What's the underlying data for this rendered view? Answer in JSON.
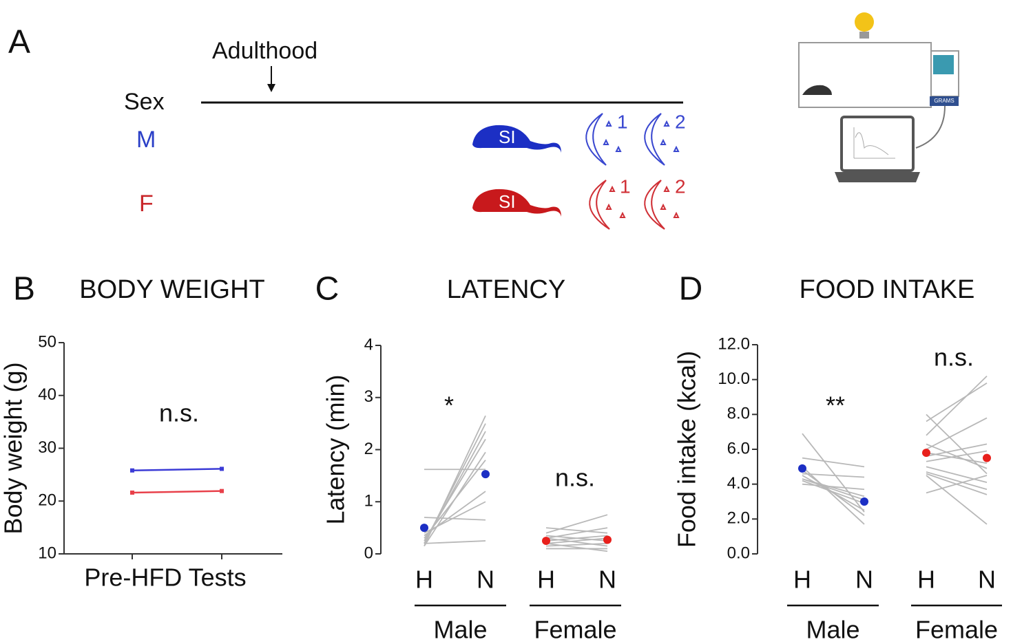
{
  "diagram": {
    "label": "A",
    "timeline_label": "Adulthood",
    "sex_label": "Sex",
    "sexes": [
      "M",
      "F"
    ],
    "procedure": "SI",
    "nights": [
      "1",
      "2"
    ],
    "device": "GRAMS"
  },
  "chart_data": [
    {
      "type": "line",
      "panel": "B",
      "title": "BODY WEIGHT",
      "y_label": "Body weight (g)",
      "x_label": "Pre-HFD Tests",
      "categories": [
        null,
        null
      ],
      "series": [
        {
          "color": "#3b3bd6",
          "values": [
            25.8,
            26.1
          ]
        },
        {
          "color": "#e8404a",
          "values": [
            21.6,
            21.9
          ]
        }
      ],
      "ylim": [
        10,
        50
      ],
      "yticks": [
        10,
        20,
        30,
        40,
        50
      ],
      "annotations": [
        "n.s."
      ]
    },
    {
      "type": "paired",
      "panel": "C",
      "title": "LATENCY",
      "y_label": "Latency (min)",
      "categories": [
        "H",
        "N",
        "H",
        "N"
      ],
      "groups": [
        "Male",
        "Female"
      ],
      "means": [
        0.5,
        1.53,
        0.25,
        0.27
      ],
      "mean_colors": [
        "#1c2fc4",
        "#1c2fc4",
        "#e8201c",
        "#e8201c"
      ],
      "individuals": [
        [
          [
            1.62,
            1.62
          ],
          [
            0.15,
            2.65
          ],
          [
            0.2,
            2.5
          ],
          [
            0.2,
            2.35
          ],
          [
            0.25,
            2.2
          ],
          [
            0.15,
            1.95
          ],
          [
            0.3,
            1.8
          ],
          [
            0.7,
            0.65
          ],
          [
            0.35,
            1.2
          ],
          [
            0.2,
            0.25
          ],
          [
            0.4,
            1.0
          ]
        ],
        [
          [
            0.5,
            0.4
          ],
          [
            0.4,
            0.75
          ],
          [
            0.3,
            0.5
          ],
          [
            0.2,
            0.3
          ],
          [
            0.15,
            0.2
          ],
          [
            0.1,
            0.1
          ],
          [
            0.3,
            0.15
          ],
          [
            0.25,
            0.35
          ],
          [
            0.2,
            0.05
          ],
          [
            0.35,
            0.25
          ]
        ]
      ],
      "ylim": [
        0,
        4
      ],
      "yticks": [
        0,
        1,
        2,
        3,
        4
      ],
      "annotations": [
        "*",
        "n.s."
      ]
    },
    {
      "type": "paired",
      "panel": "D",
      "title": "FOOD INTAKE",
      "y_label": "Food intake (kcal)",
      "categories": [
        "H",
        "N",
        "H",
        "N"
      ],
      "groups": [
        "Male",
        "Female"
      ],
      "means": [
        4.9,
        3.0,
        5.8,
        5.5
      ],
      "mean_colors": [
        "#1c2fc4",
        "#1c2fc4",
        "#e8201c",
        "#e8201c"
      ],
      "individuals": [
        [
          [
            6.9,
            2.4
          ],
          [
            5.5,
            5.0
          ],
          [
            5.0,
            1.7
          ],
          [
            4.6,
            4.4
          ],
          [
            4.5,
            2.5
          ],
          [
            4.3,
            3.1
          ],
          [
            4.0,
            3.7
          ],
          [
            4.2,
            2.9
          ],
          [
            4.8,
            2.2
          ],
          [
            4.3,
            3.3
          ]
        ],
        [
          [
            8.0,
            4.6
          ],
          [
            7.6,
            9.8
          ],
          [
            6.8,
            10.2
          ],
          [
            6.3,
            4.9
          ],
          [
            6.0,
            7.8
          ],
          [
            5.6,
            6.3
          ],
          [
            5.3,
            5.9
          ],
          [
            5.0,
            4.1
          ],
          [
            4.7,
            3.7
          ],
          [
            4.5,
            1.7
          ],
          [
            3.5,
            4.5
          ],
          [
            5.8,
            5.2
          ],
          [
            4.6,
            3.4
          ]
        ]
      ],
      "ylim": [
        0,
        12
      ],
      "yticks": [
        {
          "value": 0,
          "label": "0.0"
        },
        {
          "value": 2,
          "label": "2.0"
        },
        {
          "value": 4,
          "label": "4.0"
        },
        {
          "value": 6,
          "label": "6.0"
        },
        {
          "value": 8,
          "label": "8.0"
        },
        {
          "value": 10,
          "label": "10.0"
        },
        {
          "value": 12,
          "label": "12.0"
        }
      ],
      "annotations": [
        "**",
        "n.s."
      ]
    }
  ]
}
